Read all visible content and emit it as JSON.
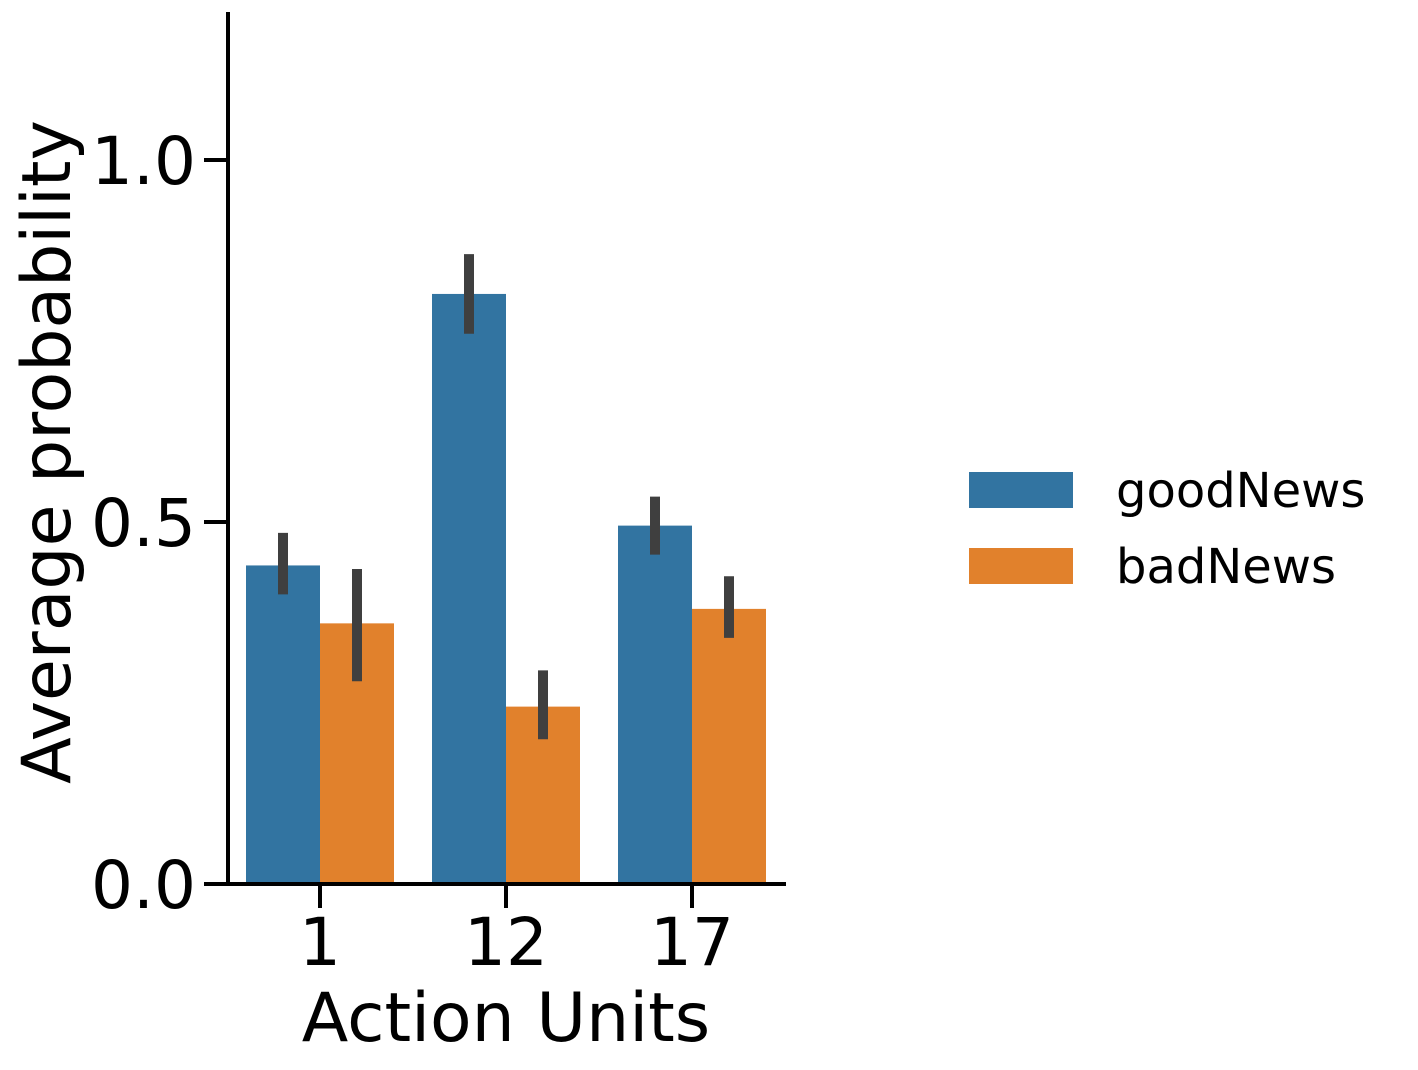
{
  "chart_data": {
    "type": "bar",
    "title": "",
    "xlabel": "Action Units",
    "ylabel": "Average probability",
    "categories": [
      "1",
      "12",
      "17"
    ],
    "series": [
      {
        "name": "goodNews",
        "color": "#3274a1",
        "values": [
          0.44,
          0.815,
          0.495
        ],
        "ci": [
          [
            0.4,
            0.485
          ],
          [
            0.76,
            0.87
          ],
          [
            0.455,
            0.535
          ]
        ]
      },
      {
        "name": "badNews",
        "color": "#e1812c",
        "values": [
          0.36,
          0.245,
          0.38
        ],
        "ci": [
          [
            0.28,
            0.435
          ],
          [
            0.2,
            0.295
          ],
          [
            0.34,
            0.425
          ]
        ]
      }
    ],
    "ylim": [
      0,
      1.2
    ],
    "yticks": [
      "0.0",
      "0.5",
      "1.0"
    ],
    "ytick_values": [
      0,
      0.5,
      1.0
    ],
    "grid": false,
    "legend_position": "right",
    "error_bar_color": "#3f3f3f"
  }
}
